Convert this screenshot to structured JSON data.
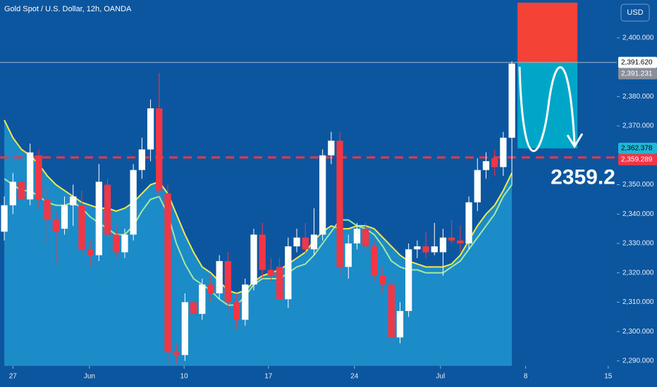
{
  "chart_data": {
    "type": "candlestick",
    "title": "Gold Spot / U.S. Dollar, 12h, OANDA",
    "currency": "USD",
    "up_color": "#ffffff",
    "down_color": "#f23645",
    "candles": {
      "open": [
        2334,
        2343,
        2351,
        2345,
        2360,
        2345,
        2338,
        2335,
        2343,
        2343,
        2328,
        2326,
        2350,
        2333,
        2327,
        2333,
        2355,
        2362,
        2376,
        2347,
        2293,
        2292,
        2310,
        2306,
        2316,
        2313,
        2324,
        2310,
        2304,
        2316,
        2333,
        2321,
        2322,
        2311,
        2329,
        2332,
        2328,
        2333,
        2360,
        2365,
        2322,
        2330,
        2335,
        2329,
        2319,
        2316,
        2298,
        2307,
        2328,
        2329,
        2327,
        2327,
        2332,
        2331,
        2330,
        2344,
        2355,
        2359,
        2356,
        2366
      ],
      "high": [
        2346,
        2354,
        2353,
        2364,
        2362,
        2349,
        2341,
        2346,
        2350,
        2348,
        2331,
        2357,
        2352,
        2336,
        2335,
        2357,
        2366,
        2379,
        2388,
        2350,
        2296,
        2313,
        2314,
        2318,
        2319,
        2326,
        2327,
        2313,
        2318,
        2335,
        2337,
        2325,
        2325,
        2332,
        2335,
        2337,
        2342,
        2362,
        2368,
        2368,
        2333,
        2337,
        2337,
        2331,
        2322,
        2318,
        2310,
        2330,
        2331,
        2334,
        2337,
        2335,
        2338,
        2336,
        2346,
        2359,
        2361,
        2362,
        2368,
        2392
      ],
      "low": [
        2331,
        2340,
        2342,
        2343,
        2342,
        2330,
        2323,
        2333,
        2336,
        2326,
        2322,
        2324,
        2317,
        2325,
        2325,
        2331,
        2352,
        2358,
        2346,
        2289,
        2289,
        2290,
        2302,
        2304,
        2310,
        2311,
        2307,
        2301,
        2302,
        2314,
        2318,
        2317,
        2309,
        2308,
        2327,
        2326,
        2326,
        2331,
        2357,
        2319,
        2318,
        2328,
        2327,
        2317,
        2313,
        2296,
        2296,
        2305,
        2325,
        2325,
        2326,
        2319,
        2330,
        2327,
        2328,
        2341,
        2352,
        2353,
        2353,
        2350
      ],
      "close": [
        2343,
        2351,
        2345,
        2361,
        2345,
        2338,
        2334,
        2343,
        2346,
        2328,
        2326,
        2351,
        2333,
        2327,
        2333,
        2355,
        2362,
        2376,
        2348,
        2293,
        2292,
        2310,
        2306,
        2316,
        2313,
        2324,
        2310,
        2304,
        2316,
        2333,
        2321,
        2319,
        2311,
        2329,
        2332,
        2328,
        2333,
        2360,
        2365,
        2322,
        2330,
        2335,
        2329,
        2319,
        2316,
        2298,
        2307,
        2328,
        2329,
        2327,
        2329,
        2332,
        2331,
        2330,
        2344,
        2355,
        2358,
        2356,
        2366,
        2391.231
      ]
    },
    "series": [
      {
        "color": "#f5e94a",
        "values": [
          2372,
          2366,
          2362,
          2360,
          2357,
          2353,
          2350,
          2348,
          2346,
          2344,
          2343,
          2342,
          2342,
          2341,
          2342,
          2344,
          2347,
          2350,
          2351,
          2347,
          2340,
          2333,
          2327,
          2322,
          2320,
          2317,
          2314,
          2313,
          2314,
          2317,
          2319,
          2320,
          2321,
          2323,
          2325,
          2327,
          2331,
          2334,
          2336,
          2335,
          2335,
          2336,
          2336,
          2335,
          2332,
          2329,
          2326,
          2324,
          2323,
          2322,
          2322,
          2322,
          2323,
          2326,
          2331,
          2336,
          2340,
          2343,
          2348,
          2354
        ]
      },
      {
        "color": "#a8e6a0",
        "values": [
          2352,
          2350,
          2348,
          2348,
          2346,
          2344,
          2343,
          2343,
          2344,
          2342,
          2339,
          2337,
          2335,
          2333,
          2333,
          2336,
          2341,
          2345,
          2346,
          2340,
          2330,
          2323,
          2318,
          2316,
          2314,
          2311,
          2309,
          2309,
          2312,
          2316,
          2318,
          2318,
          2318,
          2320,
          2322,
          2323,
          2326,
          2330,
          2334,
          2338,
          2338,
          2336,
          2335,
          2333,
          2329,
          2324,
          2322,
          2321,
          2321,
          2320,
          2320,
          2320,
          2322,
          2324,
          2328,
          2332,
          2336,
          2340,
          2346,
          2350
        ]
      }
    ],
    "area_color": "#1b8cc8",
    "ylim": [
      2288.3,
      2412.9
    ],
    "yticks": [
      {
        "value": 2290,
        "label": "2,290.000"
      },
      {
        "value": 2300,
        "label": "2,300.000"
      },
      {
        "value": 2310,
        "label": "2,310.000"
      },
      {
        "value": 2320,
        "label": "2,320.000"
      },
      {
        "value": 2330,
        "label": "2,330.000"
      },
      {
        "value": 2340,
        "label": "2,340.000"
      },
      {
        "value": 2350,
        "label": "2,350.000"
      },
      {
        "value": 2370,
        "label": "2,370.000"
      },
      {
        "value": 2380,
        "label": "2,380.000"
      },
      {
        "value": 2400,
        "label": "2,400.000"
      }
    ],
    "xlim": [
      -0.5,
      71.2
    ],
    "xticks": [
      {
        "value": 1,
        "label": "27"
      },
      {
        "value": 9.9,
        "label": "Jun"
      },
      {
        "value": 20.9,
        "label": "10"
      },
      {
        "value": 30.7,
        "label": "17"
      },
      {
        "value": 40.7,
        "label": "24"
      },
      {
        "value": 50.7,
        "label": "Jul"
      },
      {
        "value": 60.6,
        "label": "8"
      },
      {
        "value": 70.2,
        "label": "15"
      }
    ],
    "price_labels": [
      {
        "value": 2391.62,
        "label": "2,391.620",
        "color": "#ffffff",
        "text_color": "#000000"
      },
      {
        "value": 2391.231,
        "label": "2,391.231",
        "color": "#8a8f99",
        "text_color": "#ffffff"
      },
      {
        "value": 2362.378,
        "label": "2,362.378",
        "color": "#1fb6d8",
        "text_color": "#000000"
      },
      {
        "value": 2359.289,
        "label": "2,359.289",
        "color": "#f23645",
        "text_color": "#ffffff"
      }
    ],
    "stop_zone": [
      2391.62,
      2412.0
    ],
    "target_zone": [
      2362.378,
      2391.62
    ],
    "target_text": "2359.2"
  }
}
